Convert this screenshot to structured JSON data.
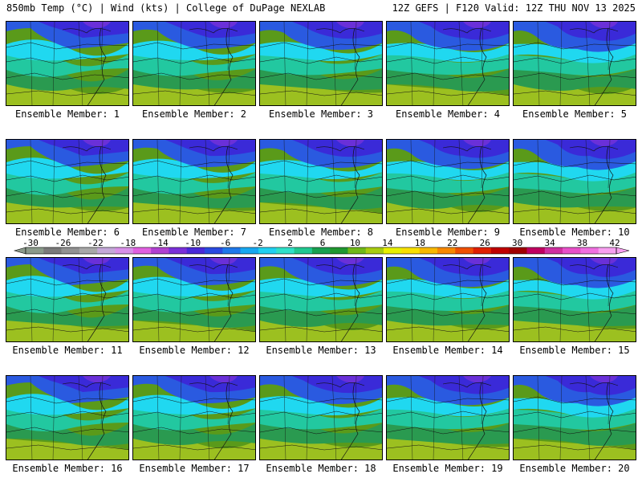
{
  "header": {
    "left": "850mb Temp (°C) | Wind (kts) | College of DuPage NEXLAB",
    "right": "12Z GEFS | F120 Valid: 12Z THU NOV 13 2025"
  },
  "label_prefix": "Ensemble Member: ",
  "members": [
    1,
    2,
    3,
    4,
    5,
    6,
    7,
    8,
    9,
    10,
    11,
    12,
    13,
    14,
    15,
    16,
    17,
    18,
    19,
    20
  ],
  "colorbar": {
    "ticks": [
      "-30",
      "-26",
      "-22",
      "-18",
      "-14",
      "-10",
      "-6",
      "-2",
      "2",
      "6",
      "10",
      "14",
      "18",
      "22",
      "26",
      "30",
      "34",
      "38",
      "42"
    ],
    "colors": [
      "#8a9a8a",
      "#7a7a7a",
      "#929292",
      "#a8a8a8",
      "#c4a8d8",
      "#d890e8",
      "#e060e0",
      "#b040d0",
      "#7a30d8",
      "#4a2ad8",
      "#2a4ae0",
      "#1e78ea",
      "#18a8f0",
      "#20d0f0",
      "#30e0c8",
      "#20c890",
      "#18a050",
      "#209830",
      "#70b818",
      "#a8cc10",
      "#e8f000",
      "#f8e000",
      "#f8b800",
      "#f88800",
      "#f05000",
      "#e02000",
      "#c00000",
      "#a00000",
      "#c00060",
      "#d030a0",
      "#e850c8",
      "#f070e0",
      "#f8a0f0"
    ]
  }
}
